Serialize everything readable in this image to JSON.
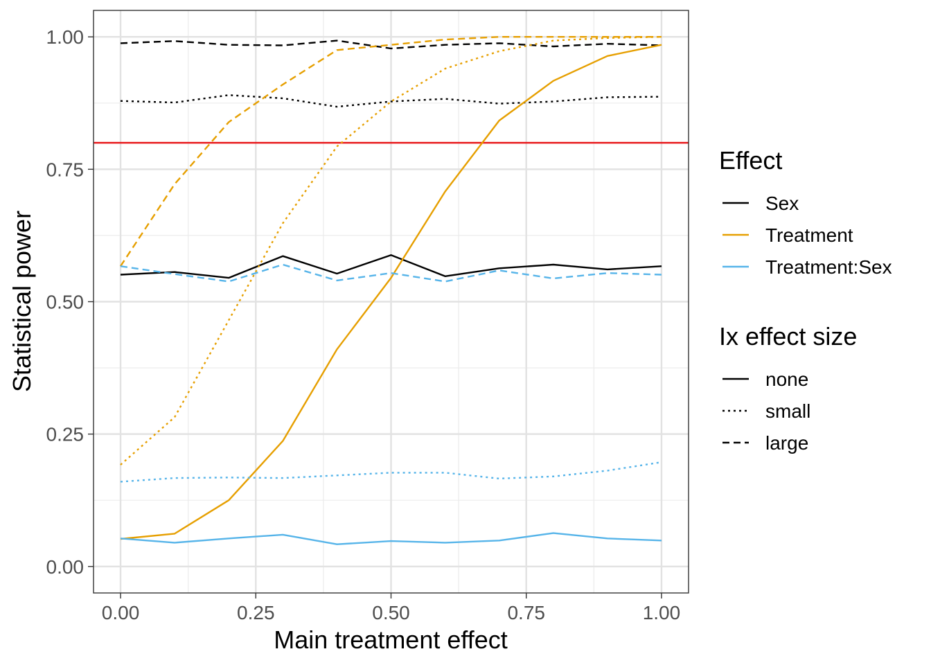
{
  "chart_data": {
    "type": "line",
    "title": "",
    "xlabel": "Main treatment effect",
    "ylabel": "Statistical power",
    "xlim": [
      -0.05,
      1.05
    ],
    "ylim": [
      -0.05,
      1.05
    ],
    "x_ticks": [
      0.0,
      0.25,
      0.5,
      0.75,
      1.0
    ],
    "x_tick_labels": [
      "0.00",
      "0.25",
      "0.50",
      "0.75",
      "1.00"
    ],
    "y_ticks": [
      0.0,
      0.25,
      0.5,
      0.75,
      1.0
    ],
    "y_tick_labels": [
      "0.00",
      "0.25",
      "0.50",
      "0.75",
      "1.00"
    ],
    "grid": true,
    "reference_line": {
      "y": 0.8,
      "color": "#E8191C"
    },
    "x": [
      0.0,
      0.1,
      0.2,
      0.3,
      0.4,
      0.5,
      0.6,
      0.7,
      0.8,
      0.9,
      1.0
    ],
    "series": [
      {
        "effect": "Sex",
        "ix_size": "none",
        "color": "#000000",
        "values": [
          0.551,
          0.556,
          0.545,
          0.586,
          0.553,
          0.588,
          0.548,
          0.563,
          0.57,
          0.561,
          0.567
        ]
      },
      {
        "effect": "Sex",
        "ix_size": "small",
        "color": "#000000",
        "values": [
          0.879,
          0.876,
          0.89,
          0.884,
          0.868,
          0.878,
          0.883,
          0.874,
          0.878,
          0.886,
          0.887
        ]
      },
      {
        "effect": "Sex",
        "ix_size": "large",
        "color": "#000000",
        "values": [
          0.988,
          0.992,
          0.985,
          0.984,
          0.993,
          0.978,
          0.985,
          0.988,
          0.982,
          0.987,
          0.984
        ]
      },
      {
        "effect": "Treatment",
        "ix_size": "none",
        "color": "#E69F00",
        "values": [
          0.052,
          0.062,
          0.125,
          0.237,
          0.41,
          0.545,
          0.708,
          0.842,
          0.917,
          0.964,
          0.985
        ]
      },
      {
        "effect": "Treatment",
        "ix_size": "small",
        "color": "#E69F00",
        "values": [
          0.192,
          0.282,
          0.465,
          0.648,
          0.793,
          0.878,
          0.94,
          0.973,
          0.993,
          0.998,
          1.0
        ]
      },
      {
        "effect": "Treatment",
        "ix_size": "large",
        "color": "#E69F00",
        "values": [
          0.567,
          0.722,
          0.839,
          0.91,
          0.975,
          0.985,
          0.995,
          1.0,
          1.0,
          1.0,
          1.0
        ]
      },
      {
        "effect": "Treatment:Sex",
        "ix_size": "none",
        "color": "#56B4E9",
        "values": [
          0.053,
          0.045,
          0.053,
          0.06,
          0.042,
          0.048,
          0.045,
          0.049,
          0.063,
          0.053,
          0.049
        ]
      },
      {
        "effect": "Treatment:Sex",
        "ix_size": "small",
        "color": "#56B4E9",
        "values": [
          0.16,
          0.167,
          0.168,
          0.167,
          0.172,
          0.177,
          0.177,
          0.166,
          0.17,
          0.181,
          0.197
        ]
      },
      {
        "effect": "Treatment:Sex",
        "ix_size": "large",
        "color": "#56B4E9",
        "values": [
          0.567,
          0.552,
          0.538,
          0.57,
          0.54,
          0.554,
          0.538,
          0.559,
          0.544,
          0.554,
          0.551
        ]
      }
    ],
    "legend": {
      "placement": "right",
      "color_title": "Effect",
      "color_items": [
        {
          "label": "Sex",
          "color": "#000000"
        },
        {
          "label": "Treatment",
          "color": "#E69F00"
        },
        {
          "label": "Treatment:Sex",
          "color": "#56B4E9"
        }
      ],
      "linetype_title": "Ix effect size",
      "linetype_items": [
        {
          "label": "none",
          "dash": "solid"
        },
        {
          "label": "small",
          "dash": "dotted"
        },
        {
          "label": "large",
          "dash": "dashed"
        }
      ]
    }
  }
}
